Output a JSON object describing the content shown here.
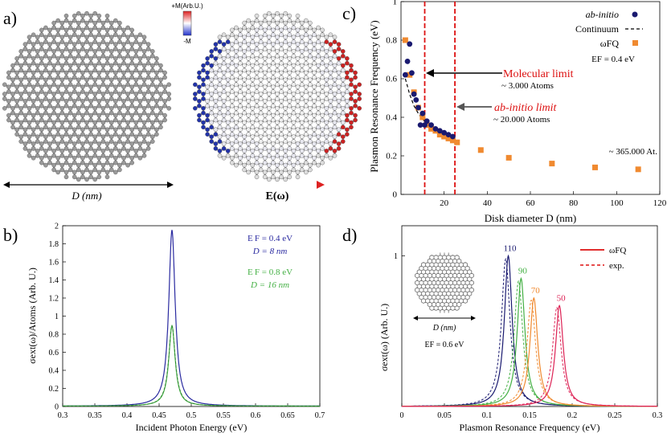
{
  "figure": {
    "panel_a": {
      "label": "a)",
      "d_label": "D (nm)",
      "e_label": "E(ω)",
      "colorbar_top": "+M(Arb.U.)",
      "colorbar_bottom": "-M",
      "colors": {
        "atom": "#9a9a9a",
        "bond": "#8a8a8a",
        "pos": "#cc2222",
        "neg": "#2233aa"
      }
    },
    "panel_b": {
      "label": "b)"
    },
    "panel_c": {
      "label": "c)"
    },
    "panel_d": {
      "label": "d)"
    }
  },
  "chart_data": [
    {
      "id": "b",
      "type": "line",
      "xlabel": "Incident Photon Energy (eV)",
      "ylabel": "σext(ω)/Atoms (Arb. U.)",
      "xlim": [
        0.3,
        0.7
      ],
      "ylim": [
        0,
        2
      ],
      "xticks": [
        "0.3",
        "0.35",
        "0.4",
        "0.45",
        "0.5",
        "0.55",
        "0.6",
        "0.65",
        "0.7"
      ],
      "yticks": [
        "0",
        "0.2",
        "0.4",
        "0.6",
        "0.8",
        "1",
        "1.2",
        "1.4",
        "1.6",
        "1.8",
        "2"
      ],
      "series": [
        {
          "name": "EF = 0.4 eV, D = 8 nm",
          "peak_x": 0.47,
          "peak_y": 1.95,
          "width": 0.006,
          "color": "#2a2aa0",
          "legend_line1": "E F = 0.4 eV",
          "legend_line2": "D = 8 nm"
        },
        {
          "name": "EF = 0.8 eV, D = 16 nm",
          "peak_x": 0.47,
          "peak_y": 0.89,
          "width": 0.006,
          "color": "#44b044",
          "legend_line1": "E F = 0.8 eV",
          "legend_line2": "D = 16 nm"
        }
      ]
    },
    {
      "id": "c",
      "type": "scatter",
      "xlabel": "Disk diameter D (nm)",
      "ylabel": "Plasmon Resonance Frequency (eV)",
      "xlim": [
        0,
        120
      ],
      "ylim": [
        0,
        1
      ],
      "xticks": [
        "20",
        "40",
        "60",
        "80",
        "100",
        "120"
      ],
      "yticks": [
        "0",
        "0.2",
        "0.4",
        "0.6",
        "0.8",
        "1"
      ],
      "series": [
        {
          "name": "ab-initio",
          "color": "#1a1a70",
          "x": [
            2,
            3,
            4,
            5,
            6,
            7,
            8,
            9,
            10,
            11,
            12,
            14,
            16,
            18,
            20,
            22,
            24
          ],
          "y": [
            0.62,
            0.69,
            0.78,
            0.63,
            0.52,
            0.49,
            0.45,
            0.36,
            0.42,
            0.36,
            0.38,
            0.36,
            0.34,
            0.33,
            0.32,
            0.31,
            0.3
          ]
        },
        {
          "name": "ωFQ",
          "color": "#f08a30",
          "x": [
            2,
            4,
            6,
            8,
            10,
            12,
            14,
            16,
            18,
            20,
            22,
            24,
            26,
            37,
            50,
            70,
            90,
            110
          ],
          "y": [
            0.8,
            0.62,
            0.53,
            0.45,
            0.4,
            0.36,
            0.34,
            0.33,
            0.31,
            0.3,
            0.29,
            0.28,
            0.27,
            0.23,
            0.19,
            0.16,
            0.14,
            0.13
          ]
        },
        {
          "name": "Continuum",
          "color": "#000000",
          "x": [
            2,
            3,
            4,
            5,
            6,
            7,
            8,
            10,
            12,
            14,
            16,
            18,
            20,
            22,
            24,
            26
          ],
          "y": [
            0.6,
            0.56,
            0.52,
            0.49,
            0.46,
            0.44,
            0.42,
            0.39,
            0.37,
            0.35,
            0.33,
            0.32,
            0.31,
            0.3,
            0.29,
            0.28
          ]
        }
      ],
      "vlines": [
        {
          "x": 11,
          "color": "#dd1111"
        },
        {
          "x": 25,
          "color": "#dd1111"
        }
      ],
      "legend": {
        "abinitio": "ab-initio",
        "continuum": "Continuum",
        "wfq": "ωFQ",
        "ef": "EF = 0.4 eV"
      },
      "annotations": {
        "mol_title": "Molecular limit",
        "mol_sub": "~ 3.000 Atoms",
        "ab_title": "ab-initio limit",
        "ab_sub": "~ 20.000 Atoms",
        "large": "~ 365.000 At."
      }
    },
    {
      "id": "d",
      "type": "line",
      "xlabel": "Plasmon Resonance Frequency (eV)",
      "ylabel": "σext(ω) (Arb. U.)",
      "xlim": [
        0,
        0.3
      ],
      "ylim": [
        0,
        1.2
      ],
      "xticks": [
        "0",
        "0.05",
        "0.1",
        "0.15",
        "0.2",
        "0.25",
        "0.3"
      ],
      "yticks": [
        "1"
      ],
      "series": [
        {
          "name": "110",
          "peak": 0.125,
          "height": 1.0,
          "color": "#1a1a70"
        },
        {
          "name": "90",
          "peak": 0.14,
          "height": 0.85,
          "color": "#44b044"
        },
        {
          "name": "70",
          "peak": 0.155,
          "height": 0.72,
          "color": "#f08a30"
        },
        {
          "name": "50",
          "peak": 0.185,
          "height": 0.67,
          "color": "#dd2255"
        }
      ],
      "legend": {
        "wfq": "ωFQ",
        "exp": "exp."
      },
      "inset_d": "D (nm)",
      "inset_ef": "EF = 0.6 eV"
    }
  ]
}
